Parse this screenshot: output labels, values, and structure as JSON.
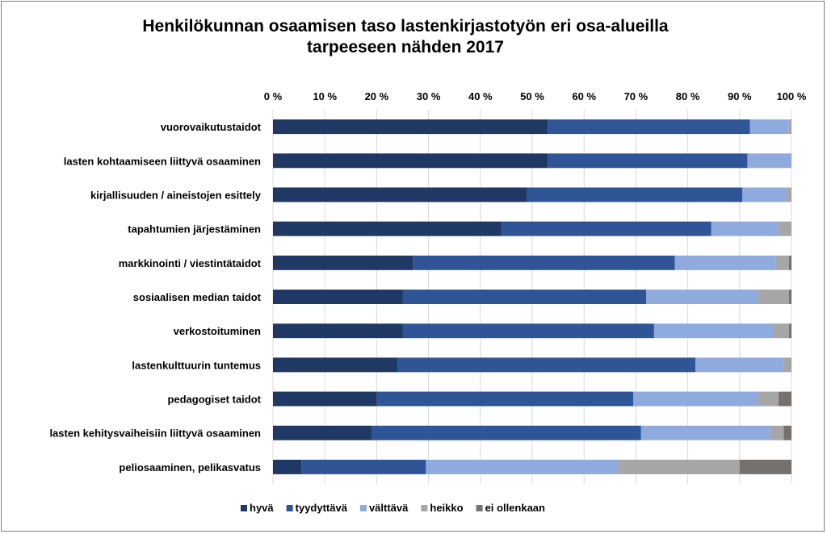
{
  "chart_data": {
    "type": "bar",
    "orientation": "horizontal",
    "stacked": "percent",
    "title_line1": "Henkilökunnan osaamisen taso lastenkirjastotyön eri osa-alueilla",
    "title_line2": "tarpeeseen nähden 2017",
    "x_ticks": [
      "0 %",
      "10 %",
      "20 %",
      "30 %",
      "40 %",
      "50 %",
      "60 %",
      "70 %",
      "80 %",
      "90 %",
      "100 %"
    ],
    "xlim": [
      0,
      100
    ],
    "grid": true,
    "legend_position": "bottom",
    "categories": [
      "vuorovaikutustaidot",
      "lasten kohtaamiseen liittyvä osaaminen",
      "kirjallisuuden / aineistojen esittely",
      "tapahtumien järjestäminen",
      "markkinointi / viestintätaidot",
      "sosiaalisen median taidot",
      "verkostoituminen",
      "lastenkulttuurin tuntemus",
      "pedagogiset taidot",
      "lasten kehitysvaiheisiin liittyvä osaaminen",
      "peliosaaminen, pelikasvatus"
    ],
    "series": [
      {
        "name": "hyvä",
        "color": "#1f3864",
        "values": [
          53,
          53,
          49,
          44,
          27,
          25,
          25,
          24,
          20,
          19,
          5.5
        ]
      },
      {
        "name": "tyydyttävä",
        "color": "#2f5597",
        "values": [
          39,
          38.5,
          41.5,
          40.5,
          50.5,
          47,
          48.5,
          57.5,
          49.5,
          52,
          24
        ]
      },
      {
        "name": "välttävä",
        "color": "#8faadc",
        "values": [
          7.5,
          8.5,
          8.5,
          13,
          19.5,
          21.5,
          23,
          17,
          24,
          25,
          37
        ]
      },
      {
        "name": "heikko",
        "color": "#a6a6a6",
        "values": [
          0.5,
          0,
          1,
          2.5,
          2.5,
          6,
          3,
          1.5,
          4,
          2.5,
          23.5
        ]
      },
      {
        "name": "ei ollenkaan",
        "color": "#767171",
        "values": [
          0,
          0,
          0,
          0,
          0.5,
          0.5,
          0.5,
          0,
          2.5,
          1.5,
          10
        ]
      }
    ]
  }
}
